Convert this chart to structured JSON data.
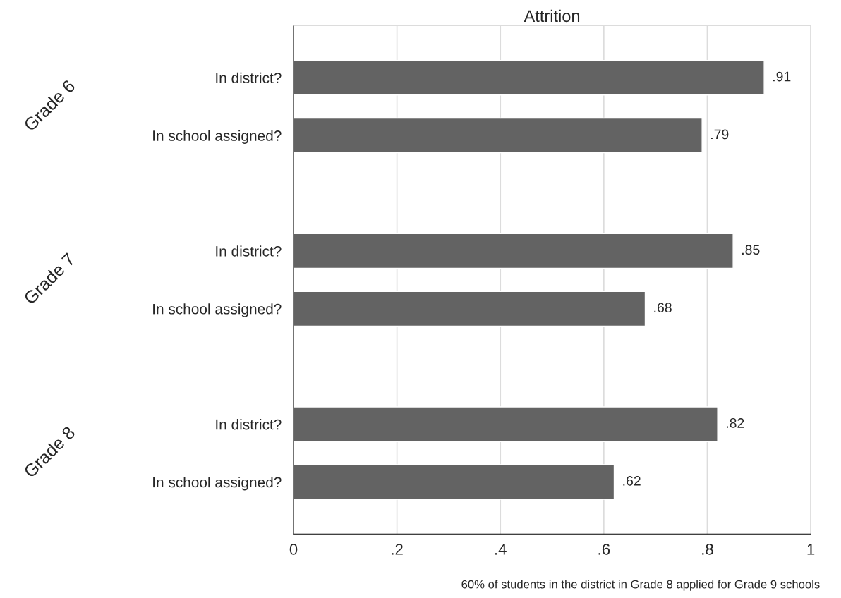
{
  "chart_data": {
    "type": "bar",
    "orientation": "horizontal",
    "title": "Attrition",
    "categories": [
      "In district?",
      "In school assigned?",
      null,
      "In district?",
      "In school assigned?",
      null,
      "In district?",
      "In school assigned?"
    ],
    "values": [
      0.91,
      0.79,
      null,
      0.85,
      0.68,
      null,
      0.82,
      0.62
    ],
    "value_labels": [
      ".91",
      ".79",
      null,
      ".85",
      ".68",
      null,
      ".82",
      ".62"
    ],
    "color": "#636363",
    "xlim": [
      0,
      1
    ],
    "xticks": [
      0,
      {
        "value": 0.2,
        "label": ".2"
      },
      {
        "value": 0.4,
        "label": ".4"
      },
      {
        "value": 0.6,
        "label": ".6"
      },
      {
        "value": 0.8,
        "label": ".8"
      },
      1
    ],
    "grid": "x",
    "annotations": [
      "Grade 6",
      "Grade 7",
      "Grade 8",
      "60% of students in the district in Grade 8 applied for Grade 9 schools"
    ]
  }
}
